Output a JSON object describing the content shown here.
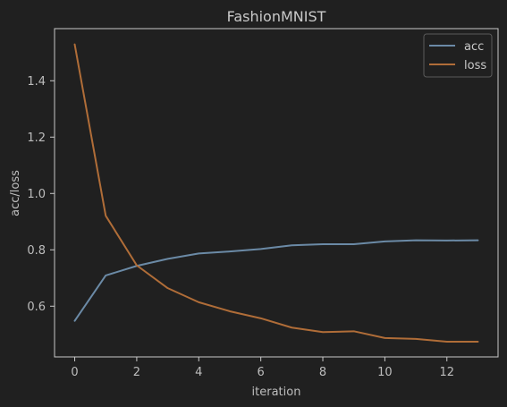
{
  "chart_data": {
    "type": "line",
    "title": "FashionMNIST",
    "xlabel": "iteration",
    "ylabel": "acc/loss",
    "x": [
      0,
      1,
      2,
      3,
      4,
      5,
      6,
      7,
      8,
      9,
      10,
      11,
      12,
      13
    ],
    "xlim": [
      -0.65,
      13.65
    ],
    "ylim": [
      0.42,
      1.585
    ],
    "xticks": [
      0,
      2,
      4,
      6,
      8,
      10,
      12
    ],
    "yticks": [
      0.6,
      0.8,
      1.0,
      1.2,
      1.4
    ],
    "xtick_labels": [
      "0",
      "2",
      "4",
      "6",
      "8",
      "10",
      "12"
    ],
    "ytick_labels": [
      "0.6",
      "0.8",
      "1.0",
      "1.2",
      "1.4"
    ],
    "grid": false,
    "legend_position": "top-right",
    "background_color": "#202020",
    "axes_frame_color": "#c8c8c8",
    "series": [
      {
        "name": "acc",
        "color": "#6b8aa6",
        "values": [
          0.548,
          0.709,
          0.743,
          0.768,
          0.787,
          0.794,
          0.803,
          0.816,
          0.82,
          0.82,
          0.83,
          0.834,
          0.833,
          0.834
        ]
      },
      {
        "name": "loss",
        "color": "#b06d38",
        "values": [
          1.529,
          0.921,
          0.745,
          0.664,
          0.614,
          0.582,
          0.557,
          0.524,
          0.508,
          0.511,
          0.487,
          0.484,
          0.474,
          0.474
        ]
      }
    ]
  }
}
